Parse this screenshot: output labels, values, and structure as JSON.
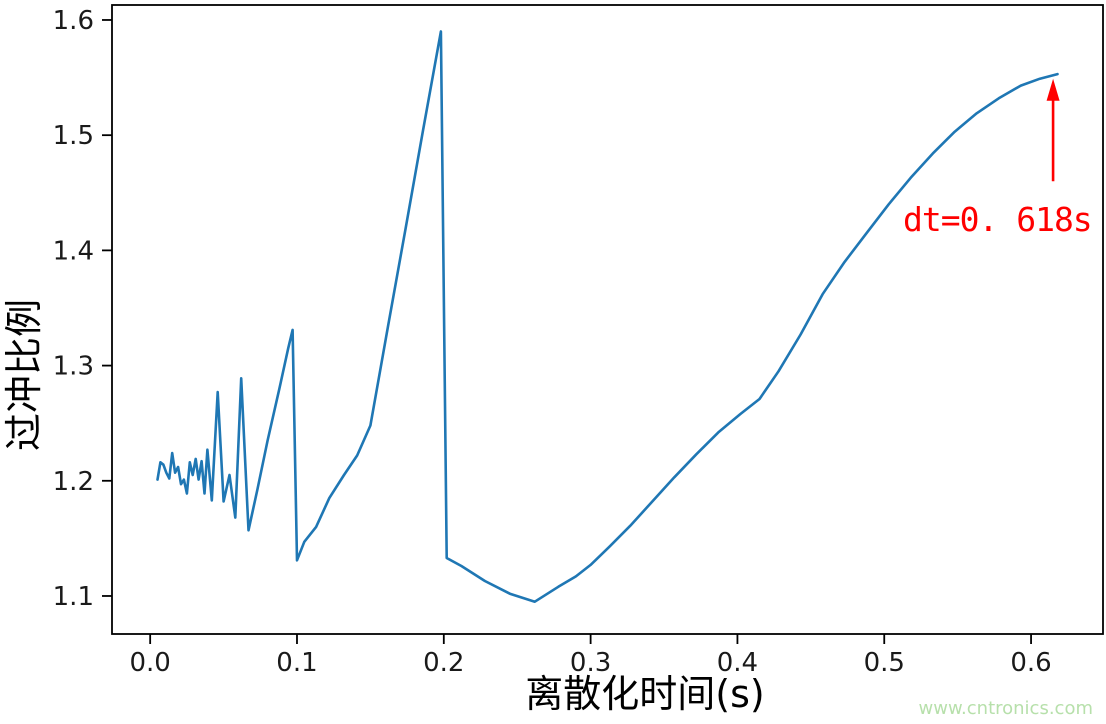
{
  "figure": {
    "background": "#ffffff",
    "watermark": {
      "text": "www.cntronics.com",
      "color": "#b7e0ab"
    }
  },
  "chart_data": {
    "type": "line",
    "title": "",
    "xlabel": "离散化时间(s)",
    "ylabel": "过冲比例",
    "xlim": [
      -0.026,
      0.649
    ],
    "ylim": [
      1.067,
      1.613
    ],
    "grid": false,
    "legend": null,
    "axis_color": "#000000",
    "tick_label_color": "#1a1a1a",
    "xticks": {
      "values": [
        0.0,
        0.1,
        0.2,
        0.3,
        0.4,
        0.5,
        0.6
      ],
      "labels": [
        "0.0",
        "0.1",
        "0.2",
        "0.3",
        "0.4",
        "0.5",
        "0.6"
      ]
    },
    "yticks": {
      "values": [
        1.1,
        1.2,
        1.3,
        1.4,
        1.5,
        1.6
      ],
      "labels": [
        "1.1",
        "1.2",
        "1.3",
        "1.4",
        "1.5",
        "1.6"
      ]
    },
    "series": [
      {
        "name": "overshoot-ratio-vs-dt",
        "color": "#1f77b4",
        "line_width": 2.6,
        "points": [
          [
            0.005,
            1.201
          ],
          [
            0.007,
            1.216
          ],
          [
            0.009,
            1.214
          ],
          [
            0.011,
            1.207
          ],
          [
            0.013,
            1.202
          ],
          [
            0.015,
            1.224
          ],
          [
            0.017,
            1.207
          ],
          [
            0.019,
            1.212
          ],
          [
            0.021,
            1.197
          ],
          [
            0.023,
            1.201
          ],
          [
            0.025,
            1.189
          ],
          [
            0.027,
            1.216
          ],
          [
            0.029,
            1.205
          ],
          [
            0.031,
            1.219
          ],
          [
            0.033,
            1.201
          ],
          [
            0.035,
            1.217
          ],
          [
            0.037,
            1.189
          ],
          [
            0.039,
            1.227
          ],
          [
            0.042,
            1.183
          ],
          [
            0.046,
            1.277
          ],
          [
            0.05,
            1.182
          ],
          [
            0.054,
            1.205
          ],
          [
            0.058,
            1.168
          ],
          [
            0.062,
            1.289
          ],
          [
            0.067,
            1.157
          ],
          [
            0.073,
            1.192
          ],
          [
            0.08,
            1.235
          ],
          [
            0.088,
            1.28
          ],
          [
            0.094,
            1.315
          ],
          [
            0.097,
            1.331
          ],
          [
            0.1,
            1.131
          ],
          [
            0.105,
            1.147
          ],
          [
            0.113,
            1.16
          ],
          [
            0.122,
            1.185
          ],
          [
            0.132,
            1.205
          ],
          [
            0.141,
            1.222
          ],
          [
            0.15,
            1.248
          ],
          [
            0.162,
            1.334
          ],
          [
            0.174,
            1.419
          ],
          [
            0.186,
            1.505
          ],
          [
            0.198,
            1.59
          ],
          [
            0.202,
            1.133
          ],
          [
            0.212,
            1.126
          ],
          [
            0.228,
            1.113
          ],
          [
            0.245,
            1.102
          ],
          [
            0.262,
            1.095
          ],
          [
            0.278,
            1.108
          ],
          [
            0.29,
            1.117
          ],
          [
            0.3,
            1.127
          ],
          [
            0.313,
            1.143
          ],
          [
            0.327,
            1.161
          ],
          [
            0.342,
            1.182
          ],
          [
            0.357,
            1.203
          ],
          [
            0.372,
            1.223
          ],
          [
            0.387,
            1.242
          ],
          [
            0.402,
            1.258
          ],
          [
            0.415,
            1.271
          ],
          [
            0.428,
            1.295
          ],
          [
            0.443,
            1.327
          ],
          [
            0.458,
            1.362
          ],
          [
            0.473,
            1.39
          ],
          [
            0.488,
            1.415
          ],
          [
            0.503,
            1.44
          ],
          [
            0.518,
            1.463
          ],
          [
            0.533,
            1.484
          ],
          [
            0.548,
            1.503
          ],
          [
            0.563,
            1.519
          ],
          [
            0.578,
            1.532
          ],
          [
            0.593,
            1.543
          ],
          [
            0.606,
            1.549
          ],
          [
            0.618,
            1.553
          ]
        ]
      }
    ],
    "annotation": {
      "text": "dt=0. 618s",
      "color": "#ff0000",
      "arrow": {
        "x": 0.615,
        "y_from": 1.46,
        "y_to": 1.549
      }
    }
  }
}
